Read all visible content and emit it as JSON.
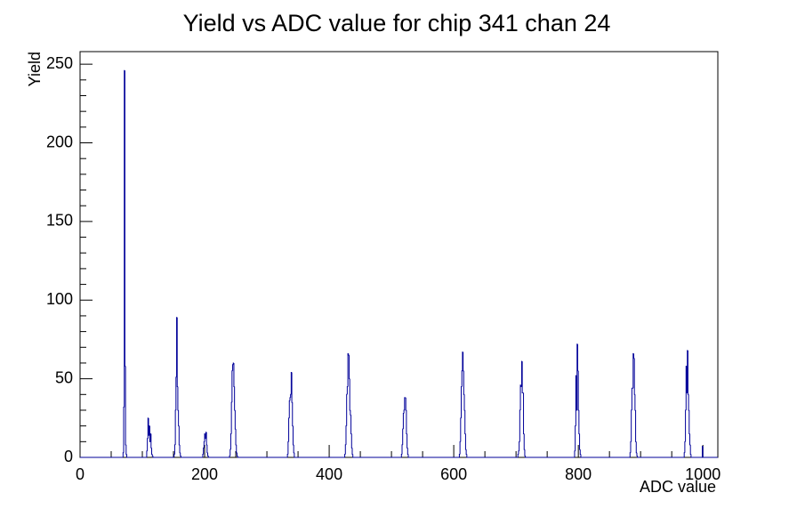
{
  "chart_data": {
    "type": "histogram",
    "title": "Yield vs ADC value for chip 341 chan 24",
    "xlabel": "ADC value",
    "ylabel": "Yield",
    "color": "#000099",
    "xlim": [
      0,
      1024
    ],
    "ylim": [
      0,
      258
    ],
    "xticks": [
      0,
      200,
      400,
      600,
      800,
      1000
    ],
    "yticks": [
      0,
      50,
      100,
      150,
      200,
      250
    ],
    "bins": [
      0,
      69,
      70,
      71,
      72,
      73,
      74,
      75,
      107,
      108,
      109,
      110,
      111,
      112,
      113,
      114,
      115,
      116,
      117,
      151,
      152,
      153,
      154,
      155,
      156,
      157,
      158,
      159,
      160,
      161,
      162,
      197,
      198,
      199,
      200,
      201,
      202,
      203,
      204,
      205,
      206,
      240,
      241,
      242,
      243,
      244,
      245,
      246,
      247,
      248,
      249,
      250,
      251,
      252,
      253,
      333,
      334,
      335,
      336,
      337,
      338,
      339,
      340,
      341,
      342,
      343,
      344,
      425,
      426,
      427,
      428,
      429,
      430,
      431,
      432,
      433,
      434,
      435,
      436,
      437,
      438,
      516,
      517,
      518,
      519,
      520,
      521,
      522,
      523,
      524,
      525,
      526,
      527,
      609,
      610,
      611,
      612,
      613,
      614,
      615,
      616,
      617,
      618,
      619,
      620,
      621,
      703,
      704,
      705,
      706,
      707,
      708,
      709,
      710,
      711,
      712,
      713,
      714,
      715,
      794,
      795,
      796,
      797,
      798,
      799,
      800,
      801,
      802,
      803,
      804,
      883,
      884,
      885,
      886,
      887,
      888,
      889,
      890,
      891,
      892,
      893,
      894,
      895,
      970,
      971,
      972,
      973,
      974,
      975,
      976,
      977,
      978,
      979,
      980,
      981,
      999,
      1000,
      1024
    ],
    "counts": [
      0,
      3,
      32,
      246,
      58,
      8,
      2,
      0,
      4,
      12,
      25,
      14,
      20,
      10,
      15,
      6,
      2,
      1,
      0,
      2,
      8,
      30,
      51,
      89,
      45,
      30,
      20,
      8,
      3,
      1,
      0,
      2,
      6,
      10,
      15,
      12,
      16,
      8,
      3,
      1,
      0,
      1,
      5,
      15,
      35,
      55,
      59,
      60,
      45,
      30,
      18,
      8,
      3,
      1,
      0,
      2,
      10,
      25,
      36,
      38,
      40,
      54,
      35,
      20,
      8,
      3,
      0,
      2,
      8,
      20,
      40,
      45,
      66,
      65,
      50,
      30,
      27,
      15,
      6,
      2,
      0,
      2,
      8,
      18,
      28,
      30,
      38,
      38,
      30,
      15,
      6,
      2,
      0,
      2,
      10,
      25,
      45,
      55,
      67,
      55,
      40,
      30,
      15,
      5,
      2,
      0,
      2,
      4,
      10,
      30,
      46,
      45,
      61,
      41,
      41,
      15,
      5,
      1,
      0,
      4,
      20,
      52,
      30,
      72,
      55,
      30,
      15,
      5,
      2,
      0,
      3,
      10,
      30,
      44,
      44,
      66,
      63,
      40,
      30,
      10,
      3,
      1,
      0,
      3,
      10,
      30,
      58,
      41,
      68,
      40,
      30,
      15,
      8,
      2,
      0,
      7,
      0
    ]
  }
}
